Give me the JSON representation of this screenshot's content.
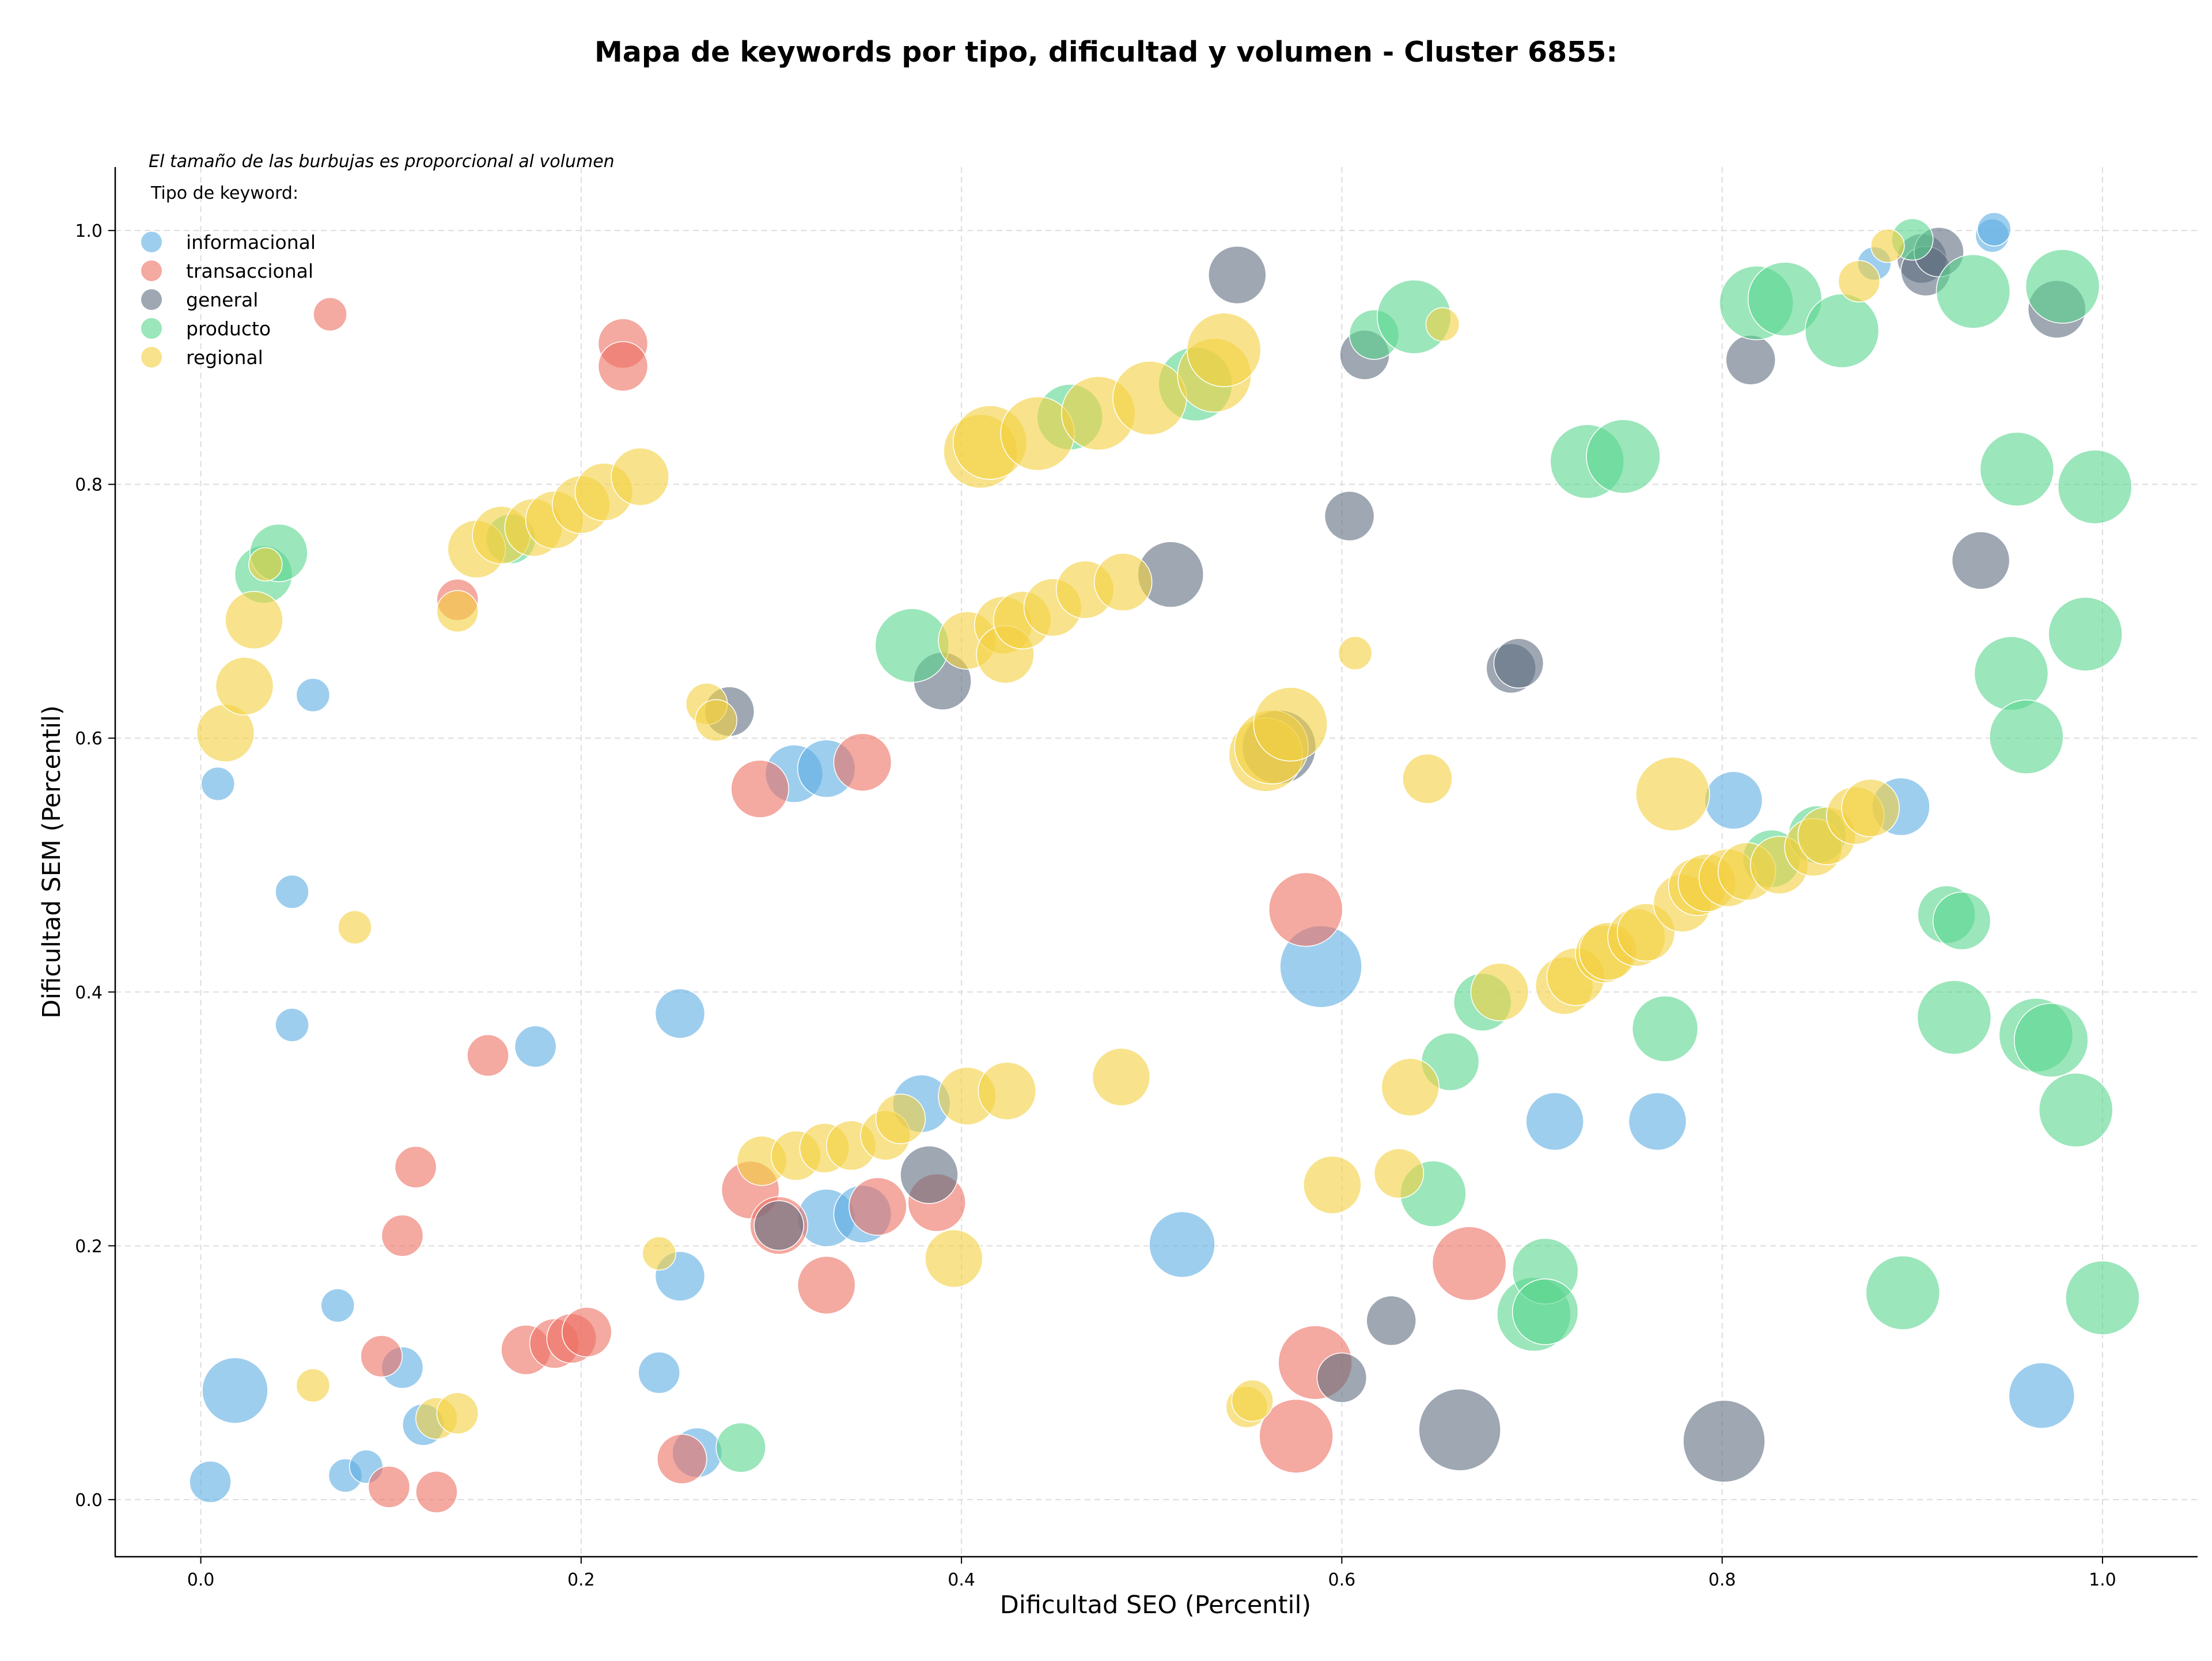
{
  "chart_data": {
    "type": "scatter",
    "title": "Mapa de keywords por tipo, dificultad y volumen - Cluster 6855:",
    "xlabel": "Dificultad SEO (Percentil)",
    "ylabel": "Dificultad SEM (Percentil)",
    "note": "El tamaño de las burbujas es proporcional al volumen",
    "legend_title": "Tipo de keyword:",
    "legend_position": "top-left",
    "xlim": [
      -0.045,
      1.05
    ],
    "ylim": [
      -0.045,
      1.05
    ],
    "xticks": [
      "0.0",
      "0.2",
      "0.4",
      "0.6",
      "0.8",
      "1.0"
    ],
    "yticks": [
      "0.0",
      "0.2",
      "0.4",
      "0.6",
      "0.8",
      "1.0"
    ],
    "grid": true,
    "size_encodes": "volume (relative size 1-10)",
    "series": [
      {
        "name": "informacional",
        "color": "#5dade2",
        "points": [
          [
            0.005,
            0.014,
            3
          ],
          [
            0.009,
            0.564,
            2
          ],
          [
            0.018,
            0.086,
            6
          ],
          [
            0.048,
            0.479,
            2
          ],
          [
            0.048,
            0.374,
            2
          ],
          [
            0.059,
            0.634,
            2
          ],
          [
            0.072,
            0.153,
            2
          ],
          [
            0.076,
            0.019,
            2
          ],
          [
            0.087,
            0.026,
            2
          ],
          [
            0.106,
            0.104,
            3
          ],
          [
            0.117,
            0.059,
            3
          ],
          [
            0.176,
            0.357,
            3
          ],
          [
            0.241,
            0.1,
            3
          ],
          [
            0.252,
            0.383,
            4
          ],
          [
            0.252,
            0.176,
            4
          ],
          [
            0.261,
            0.037,
            4
          ],
          [
            0.312,
            0.572,
            5
          ],
          [
            0.329,
            0.576,
            5
          ],
          [
            0.329,
            0.222,
            5
          ],
          [
            0.348,
            0.225,
            5
          ],
          [
            0.379,
            0.312,
            5
          ],
          [
            0.516,
            0.201,
            6
          ],
          [
            0.589,
            0.42,
            8
          ],
          [
            0.712,
            0.298,
            5
          ],
          [
            0.766,
            0.298,
            5
          ],
          [
            0.806,
            0.551,
            5
          ],
          [
            0.894,
            0.546,
            5
          ],
          [
            0.88,
            0.974,
            2
          ],
          [
            0.942,
            0.996,
            2
          ],
          [
            0.943,
            1.001,
            2
          ],
          [
            0.968,
            0.082,
            6
          ]
        ]
      },
      {
        "name": "transaccional",
        "color": "#ec7063",
        "points": [
          [
            0.068,
            0.934,
            2
          ],
          [
            0.095,
            0.113,
            3
          ],
          [
            0.099,
            0.01,
            3
          ],
          [
            0.106,
            0.208,
            3
          ],
          [
            0.113,
            0.262,
            3
          ],
          [
            0.124,
            0.006,
            3
          ],
          [
            0.135,
            0.709,
            3
          ],
          [
            0.151,
            0.35,
            3
          ],
          [
            0.171,
            0.118,
            4
          ],
          [
            0.186,
            0.123,
            4
          ],
          [
            0.195,
            0.127,
            4
          ],
          [
            0.203,
            0.132,
            4
          ],
          [
            0.222,
            0.911,
            4
          ],
          [
            0.222,
            0.893,
            4
          ],
          [
            0.253,
            0.032,
            4
          ],
          [
            0.289,
            0.244,
            5
          ],
          [
            0.294,
            0.56,
            5
          ],
          [
            0.304,
            0.216,
            5
          ],
          [
            0.329,
            0.169,
            5
          ],
          [
            0.348,
            0.581,
            5
          ],
          [
            0.356,
            0.231,
            5
          ],
          [
            0.387,
            0.234,
            5
          ],
          [
            0.581,
            0.465,
            7
          ],
          [
            0.586,
            0.108,
            7
          ],
          [
            0.576,
            0.05,
            7
          ],
          [
            0.667,
            0.186,
            7
          ]
        ]
      },
      {
        "name": "general",
        "color": "#5d6d7e",
        "points": [
          [
            0.278,
            0.621,
            4
          ],
          [
            0.304,
            0.216,
            4
          ],
          [
            0.383,
            0.256,
            5
          ],
          [
            0.39,
            0.645,
            5
          ],
          [
            0.51,
            0.729,
            6
          ],
          [
            0.545,
            0.965,
            5
          ],
          [
            0.567,
            0.593,
            7
          ],
          [
            0.6,
            0.096,
            4
          ],
          [
            0.604,
            0.775,
            4
          ],
          [
            0.612,
            0.902,
            4
          ],
          [
            0.626,
            0.141,
            4
          ],
          [
            0.662,
            0.055,
            8
          ],
          [
            0.689,
            0.655,
            4
          ],
          [
            0.693,
            0.659,
            4
          ],
          [
            0.801,
            0.046,
            8
          ],
          [
            0.815,
            0.898,
            4
          ],
          [
            0.905,
            0.978,
            4
          ],
          [
            0.907,
            0.968,
            4
          ],
          [
            0.914,
            0.983,
            4
          ],
          [
            0.936,
            0.74,
            5
          ],
          [
            0.976,
            0.938,
            5
          ]
        ]
      },
      {
        "name": "producto",
        "color": "#58d68d",
        "points": [
          [
            0.033,
            0.729,
            5
          ],
          [
            0.041,
            0.746,
            5
          ],
          [
            0.163,
            0.757,
            4
          ],
          [
            0.284,
            0.041,
            4
          ],
          [
            0.374,
            0.673,
            7
          ],
          [
            0.457,
            0.853,
            6
          ],
          [
            0.523,
            0.879,
            7
          ],
          [
            0.617,
            0.918,
            4
          ],
          [
            0.638,
            0.932,
            7
          ],
          [
            0.648,
            0.241,
            6
          ],
          [
            0.657,
            0.345,
            5
          ],
          [
            0.674,
            0.392,
            5
          ],
          [
            0.701,
            0.146,
            7
          ],
          [
            0.707,
            0.18,
            6
          ],
          [
            0.707,
            0.148,
            6
          ],
          [
            0.729,
            0.818,
            7
          ],
          [
            0.748,
            0.822,
            7
          ],
          [
            0.77,
            0.371,
            6
          ],
          [
            0.818,
            0.943,
            7
          ],
          [
            0.833,
            0.946,
            7
          ],
          [
            0.826,
            0.505,
            5
          ],
          [
            0.85,
            0.524,
            5
          ],
          [
            0.863,
            0.921,
            7
          ],
          [
            0.895,
            0.163,
            7
          ],
          [
            0.9,
            0.993,
            3
          ],
          [
            0.918,
            0.461,
            5
          ],
          [
            0.922,
            0.38,
            7
          ],
          [
            0.926,
            0.456,
            5
          ],
          [
            0.932,
            0.952,
            7
          ],
          [
            0.955,
            0.812,
            7
          ],
          [
            0.952,
            0.651,
            7
          ],
          [
            0.96,
            0.601,
            7
          ],
          [
            0.965,
            0.366,
            7
          ],
          [
            0.973,
            0.362,
            7
          ],
          [
            0.979,
            0.956,
            7
          ],
          [
            0.986,
            0.307,
            7
          ],
          [
            0.991,
            0.682,
            7
          ],
          [
            0.996,
            0.798,
            7
          ],
          [
            1.0,
            0.159,
            7
          ]
        ]
      },
      {
        "name": "regional",
        "color": "#f4d03f",
        "points": [
          [
            0.013,
            0.604,
            5
          ],
          [
            0.023,
            0.641,
            5
          ],
          [
            0.028,
            0.693,
            5
          ],
          [
            0.034,
            0.737,
            2
          ],
          [
            0.059,
            0.09,
            2
          ],
          [
            0.081,
            0.451,
            2
          ],
          [
            0.124,
            0.064,
            3
          ],
          [
            0.135,
            0.068,
            3
          ],
          [
            0.135,
            0.7,
            3
          ],
          [
            0.145,
            0.749,
            5
          ],
          [
            0.158,
            0.76,
            5
          ],
          [
            0.175,
            0.766,
            5
          ],
          [
            0.186,
            0.772,
            5
          ],
          [
            0.2,
            0.784,
            5
          ],
          [
            0.212,
            0.794,
            5
          ],
          [
            0.231,
            0.806,
            5
          ],
          [
            0.241,
            0.194,
            2
          ],
          [
            0.266,
            0.627,
            3
          ],
          [
            0.271,
            0.614,
            3
          ],
          [
            0.295,
            0.267,
            4
          ],
          [
            0.313,
            0.271,
            4
          ],
          [
            0.328,
            0.277,
            4
          ],
          [
            0.342,
            0.279,
            4
          ],
          [
            0.36,
            0.287,
            4
          ],
          [
            0.368,
            0.3,
            4
          ],
          [
            0.396,
            0.19,
            5
          ],
          [
            0.403,
            0.318,
            5
          ],
          [
            0.403,
            0.677,
            5
          ],
          [
            0.41,
            0.826,
            7
          ],
          [
            0.415,
            0.833,
            7
          ],
          [
            0.422,
            0.689,
            5
          ],
          [
            0.423,
            0.666,
            5
          ],
          [
            0.424,
            0.322,
            5
          ],
          [
            0.432,
            0.693,
            5
          ],
          [
            0.44,
            0.84,
            7
          ],
          [
            0.448,
            0.703,
            5
          ],
          [
            0.465,
            0.717,
            5
          ],
          [
            0.472,
            0.856,
            7
          ],
          [
            0.484,
            0.333,
            5
          ],
          [
            0.485,
            0.723,
            5
          ],
          [
            0.499,
            0.868,
            7
          ],
          [
            0.533,
            0.886,
            7
          ],
          [
            0.538,
            0.906,
            7
          ],
          [
            0.56,
            0.587,
            7
          ],
          [
            0.563,
            0.593,
            7
          ],
          [
            0.573,
            0.611,
            7
          ],
          [
            0.55,
            0.073,
            3
          ],
          [
            0.553,
            0.078,
            3
          ],
          [
            0.595,
            0.248,
            5
          ],
          [
            0.607,
            0.667,
            2
          ],
          [
            0.63,
            0.257,
            4
          ],
          [
            0.636,
            0.325,
            5
          ],
          [
            0.645,
            0.568,
            4
          ],
          [
            0.653,
            0.926,
            2
          ],
          [
            0.683,
            0.4,
            5
          ],
          [
            0.717,
            0.405,
            5
          ],
          [
            0.723,
            0.412,
            5
          ],
          [
            0.738,
            0.43,
            5
          ],
          [
            0.74,
            0.432,
            5
          ],
          [
            0.755,
            0.443,
            5
          ],
          [
            0.76,
            0.447,
            5
          ],
          [
            0.774,
            0.556,
            7
          ],
          [
            0.779,
            0.47,
            5
          ],
          [
            0.787,
            0.483,
            5
          ],
          [
            0.792,
            0.486,
            5
          ],
          [
            0.803,
            0.49,
            5
          ],
          [
            0.813,
            0.495,
            5
          ],
          [
            0.83,
            0.5,
            5
          ],
          [
            0.848,
            0.514,
            5
          ],
          [
            0.855,
            0.523,
            5
          ],
          [
            0.87,
            0.539,
            5
          ],
          [
            0.878,
            0.545,
            5
          ],
          [
            0.872,
            0.96,
            3
          ],
          [
            0.887,
            0.988,
            2
          ]
        ]
      }
    ]
  }
}
